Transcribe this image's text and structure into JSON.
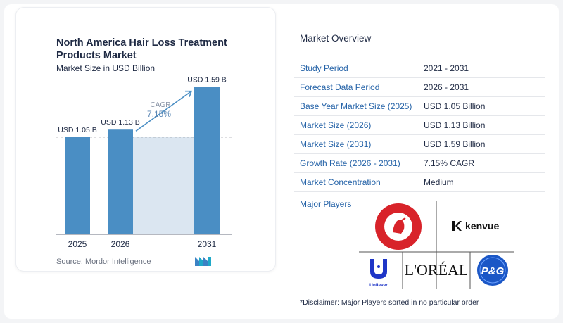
{
  "chart_data": {
    "type": "bar",
    "title": "North America Hair Loss Treatment Products Market",
    "subtitle": "Market Size in USD Billion",
    "categories": [
      "2025",
      "2026",
      "2031"
    ],
    "values": [
      1.05,
      1.13,
      1.59
    ],
    "value_labels": [
      "USD 1.05 B",
      "USD 1.13 B",
      "USD 1.59 B"
    ],
    "cagr_label": "CAGR",
    "cagr_value": "7.15%",
    "ylim": [
      0,
      1.8
    ],
    "grid": false,
    "colors": {
      "bar": "#4a8ec4",
      "shade": "#dbe6f1",
      "arrow": "#4a8ec4",
      "cagr": "#5b87b5"
    }
  },
  "source": "Source:  Mordor Intelligence",
  "overview": {
    "title": "Market Overview",
    "rows": [
      {
        "label": "Study Period",
        "value": "2021 - 2031"
      },
      {
        "label": "Forecast Data Period",
        "value": "2026 - 2031"
      },
      {
        "label": "Base Year Market Size (2025)",
        "value": "USD 1.05 Billion"
      },
      {
        "label": "Market Size (2026)",
        "value": "USD 1.13 Billion"
      },
      {
        "label": "Market Size (2031)",
        "value": "USD 1.59 Billion"
      },
      {
        "label": "Growth Rate (2026 - 2031)",
        "value": "7.15% CAGR"
      },
      {
        "label": "Market Concentration",
        "value": "Medium"
      }
    ],
    "players_label": "Major Players",
    "players": [
      "CHURCH & DWIGHT CO., INC.",
      "kenvue",
      "Unilever",
      "L'ORÉAL",
      "P&G"
    ],
    "disclaimer": "*Disclaimer: Major Players sorted in no particular order"
  }
}
